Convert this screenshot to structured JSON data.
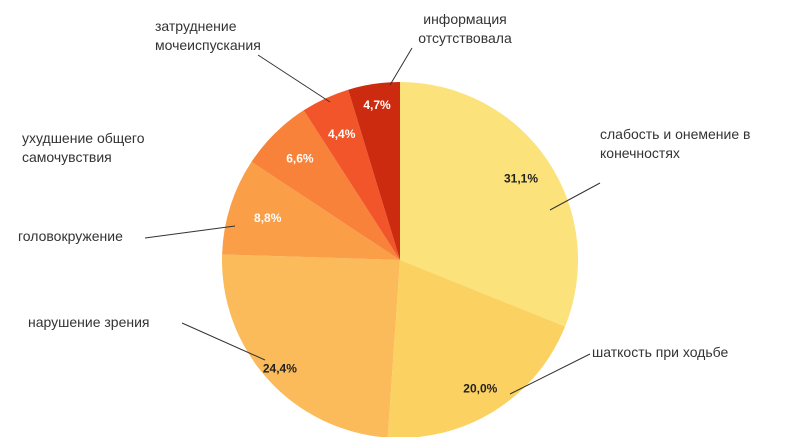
{
  "chart_data": {
    "type": "pie",
    "title": "",
    "start_angle_deg": 0,
    "direction": "clockwise",
    "slices": [
      {
        "category": "слабость и онемение в конечностях",
        "label_lines": [
          "слабость и онемение в",
          "конечностях"
        ],
        "value": 31.1,
        "value_label": "31,1%",
        "color": "#fbe27a",
        "value_color": "#222222"
      },
      {
        "category": "шаткость при ходьбе",
        "label_lines": [
          "шаткость при ходьбе"
        ],
        "value": 20.0,
        "value_label": "20,0%",
        "color": "#fbd261",
        "value_color": "#222222"
      },
      {
        "category": "нарушение зрения",
        "label_lines": [
          "нарушение зрения"
        ],
        "value": 24.4,
        "value_label": "24,4%",
        "color": "#fbbb5b",
        "value_color": "#222222"
      },
      {
        "category": "головокружение",
        "label_lines": [
          "головокружение"
        ],
        "value": 8.8,
        "value_label": "8,8%",
        "color": "#fa9e48",
        "value_color": "#ffffff"
      },
      {
        "category": "ухудшение общего самочувствия",
        "label_lines": [
          "ухудшение общего",
          "самочувствия"
        ],
        "value": 6.6,
        "value_label": "6,6%",
        "color": "#f8823a",
        "value_color": "#ffffff"
      },
      {
        "category": "затруднение мочеиспускания",
        "label_lines": [
          "затруднение",
          "мочеиспускания"
        ],
        "value": 4.4,
        "value_label": "4,4%",
        "color": "#f2552a",
        "value_color": "#ffffff"
      },
      {
        "category": "информация отсутствовала",
        "label_lines": [
          "информация",
          "отсутствовала"
        ],
        "value": 4.7,
        "value_label": "4,7%",
        "color": "#cc2b10",
        "value_color": "#ffffff"
      }
    ]
  }
}
